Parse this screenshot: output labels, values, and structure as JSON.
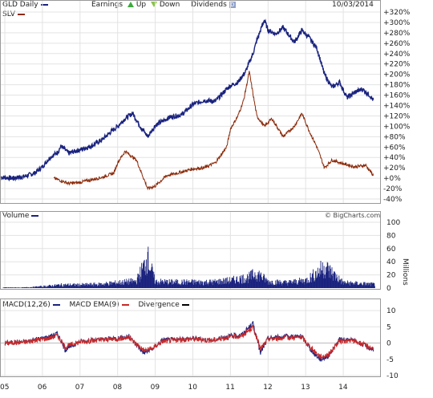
{
  "header": {
    "gld_label": "GLD Daily",
    "earnings_label": "Earnings",
    "up_label": "Up",
    "down_label": "Down",
    "dividends_label": "Dividends",
    "dividends_marker": "D",
    "date": "10/03/2014",
    "slv_label": "SLV"
  },
  "volume_header": {
    "label": "Volume",
    "watermark": "© BigCharts.com",
    "unit_label": "Millions"
  },
  "macd_header": {
    "macd_label": "MACD(12,26)",
    "ema_label": "MACD EMA(9)",
    "divergence_label": "Divergence"
  },
  "colors": {
    "gld": "#1a237e",
    "slv": "#8b2a0a",
    "macd_ema": "#c62828",
    "divergence": "#000000",
    "up": "#3caa3c",
    "down": "#8bc34a"
  },
  "chart_data": [
    {
      "type": "line",
      "title": "",
      "x_ticks": [
        "05",
        "06",
        "07",
        "08",
        "09",
        "10",
        "11",
        "12",
        "13",
        "14"
      ],
      "y_ticks": [
        "+320%",
        "+300%",
        "+280%",
        "+260%",
        "+240%",
        "+220%",
        "+200%",
        "+180%",
        "+160%",
        "+140%",
        "+120%",
        "+100%",
        "+80%",
        "+60%",
        "+40%",
        "+20%",
        "+0%",
        "-20%",
        "-40%"
      ],
      "ylim": [
        -40,
        320
      ],
      "series": [
        {
          "name": "GLD Daily",
          "x": [
            2004.9,
            2005.2,
            2005.5,
            2005.8,
            2006.0,
            2006.2,
            2006.4,
            2006.5,
            2006.7,
            2007.0,
            2007.3,
            2007.6,
            2007.8,
            2008.0,
            2008.2,
            2008.4,
            2008.6,
            2008.8,
            2009.0,
            2009.2,
            2009.4,
            2009.7,
            2010.0,
            2010.3,
            2010.6,
            2010.9,
            2011.0,
            2011.2,
            2011.4,
            2011.6,
            2011.7,
            2011.9,
            2012.0,
            2012.2,
            2012.4,
            2012.7,
            2012.9,
            2013.1,
            2013.3,
            2013.5,
            2013.7,
            2013.9,
            2014.1,
            2014.3,
            2014.5,
            2014.7,
            2014.8
          ],
          "values": [
            2,
            0,
            3,
            10,
            22,
            40,
            50,
            62,
            48,
            55,
            62,
            75,
            88,
            100,
            115,
            125,
            100,
            80,
            102,
            110,
            118,
            122,
            142,
            150,
            148,
            172,
            178,
            185,
            205,
            240,
            265,
            305,
            285,
            278,
            290,
            262,
            285,
            270,
            250,
            200,
            175,
            185,
            155,
            165,
            172,
            160,
            150
          ]
        },
        {
          "name": "SLV",
          "x": [
            2006.3,
            2006.5,
            2006.7,
            2007.0,
            2007.3,
            2007.6,
            2007.9,
            2008.0,
            2008.2,
            2008.5,
            2008.8,
            2009.0,
            2009.3,
            2009.6,
            2010.0,
            2010.3,
            2010.6,
            2010.9,
            2011.0,
            2011.2,
            2011.35,
            2011.5,
            2011.7,
            2011.9,
            2012.1,
            2012.4,
            2012.7,
            2012.9,
            2013.1,
            2013.3,
            2013.5,
            2013.7,
            2014.0,
            2014.3,
            2014.6,
            2014.8
          ],
          "values": [
            0,
            -5,
            -10,
            -8,
            -3,
            2,
            10,
            30,
            52,
            35,
            -20,
            -15,
            5,
            10,
            18,
            20,
            30,
            60,
            95,
            120,
            150,
            205,
            120,
            100,
            115,
            80,
            100,
            125,
            90,
            60,
            20,
            35,
            28,
            22,
            25,
            5
          ]
        }
      ]
    },
    {
      "type": "bar",
      "title": "",
      "y_ticks": [
        "100",
        "80",
        "60",
        "40",
        "20",
        "0"
      ],
      "ylim": [
        0,
        100
      ],
      "series": [
        {
          "name": "Volume",
          "x": [
            2005.0,
            2005.5,
            2006.0,
            2006.5,
            2007.0,
            2007.5,
            2008.0,
            2008.5,
            2008.8,
            2009.0,
            2009.5,
            2010.0,
            2010.5,
            2011.0,
            2011.5,
            2011.7,
            2012.0,
            2012.5,
            2013.0,
            2013.3,
            2013.5,
            2014.0,
            2014.5,
            2014.8
          ],
          "values": [
            1,
            1,
            3,
            6,
            6,
            7,
            10,
            13,
            55,
            12,
            11,
            11,
            11,
            14,
            20,
            28,
            12,
            10,
            14,
            28,
            40,
            10,
            8,
            7
          ]
        }
      ]
    },
    {
      "type": "line",
      "title": "",
      "y_ticks": [
        "10",
        "5",
        "0",
        "-5",
        "-10"
      ],
      "ylim": [
        -10,
        10
      ],
      "series": [
        {
          "name": "MACD(12,26)",
          "x": [
            2005.0,
            2005.6,
            2006.2,
            2006.4,
            2006.6,
            2007.0,
            2007.5,
            2008.0,
            2008.3,
            2008.7,
            2008.9,
            2009.2,
            2009.6,
            2010.0,
            2010.5,
            2010.9,
            2011.3,
            2011.6,
            2011.8,
            2012.0,
            2012.5,
            2012.9,
            2013.2,
            2013.4,
            2013.6,
            2013.9,
            2014.3,
            2014.6,
            2014.8
          ],
          "values": [
            0,
            0.5,
            2,
            3,
            -2,
            0.5,
            1,
            1.5,
            2,
            -3,
            -2,
            1,
            1,
            1.5,
            0.8,
            2,
            2.5,
            6,
            -3,
            1.5,
            2,
            2,
            -3,
            -5,
            -4,
            1,
            0.8,
            -1,
            -2
          ]
        },
        {
          "name": "MACD EMA(9)",
          "x": [
            2005.0,
            2005.6,
            2006.2,
            2006.4,
            2006.6,
            2007.0,
            2007.5,
            2008.0,
            2008.3,
            2008.7,
            2008.9,
            2009.2,
            2009.6,
            2010.0,
            2010.5,
            2010.9,
            2011.3,
            2011.6,
            2011.8,
            2012.0,
            2012.5,
            2012.9,
            2013.2,
            2013.4,
            2013.6,
            2013.9,
            2014.3,
            2014.6,
            2014.8
          ],
          "values": [
            0,
            0.4,
            1.6,
            2.4,
            -1.2,
            0.4,
            0.9,
            1.3,
            1.7,
            -2.2,
            -1.8,
            0.6,
            0.9,
            1.3,
            0.8,
            1.7,
            2.2,
            4.8,
            -1.8,
            1.2,
            1.7,
            1.7,
            -2.2,
            -4.2,
            -3.6,
            0.6,
            0.7,
            -0.8,
            -1.6
          ]
        }
      ]
    }
  ]
}
